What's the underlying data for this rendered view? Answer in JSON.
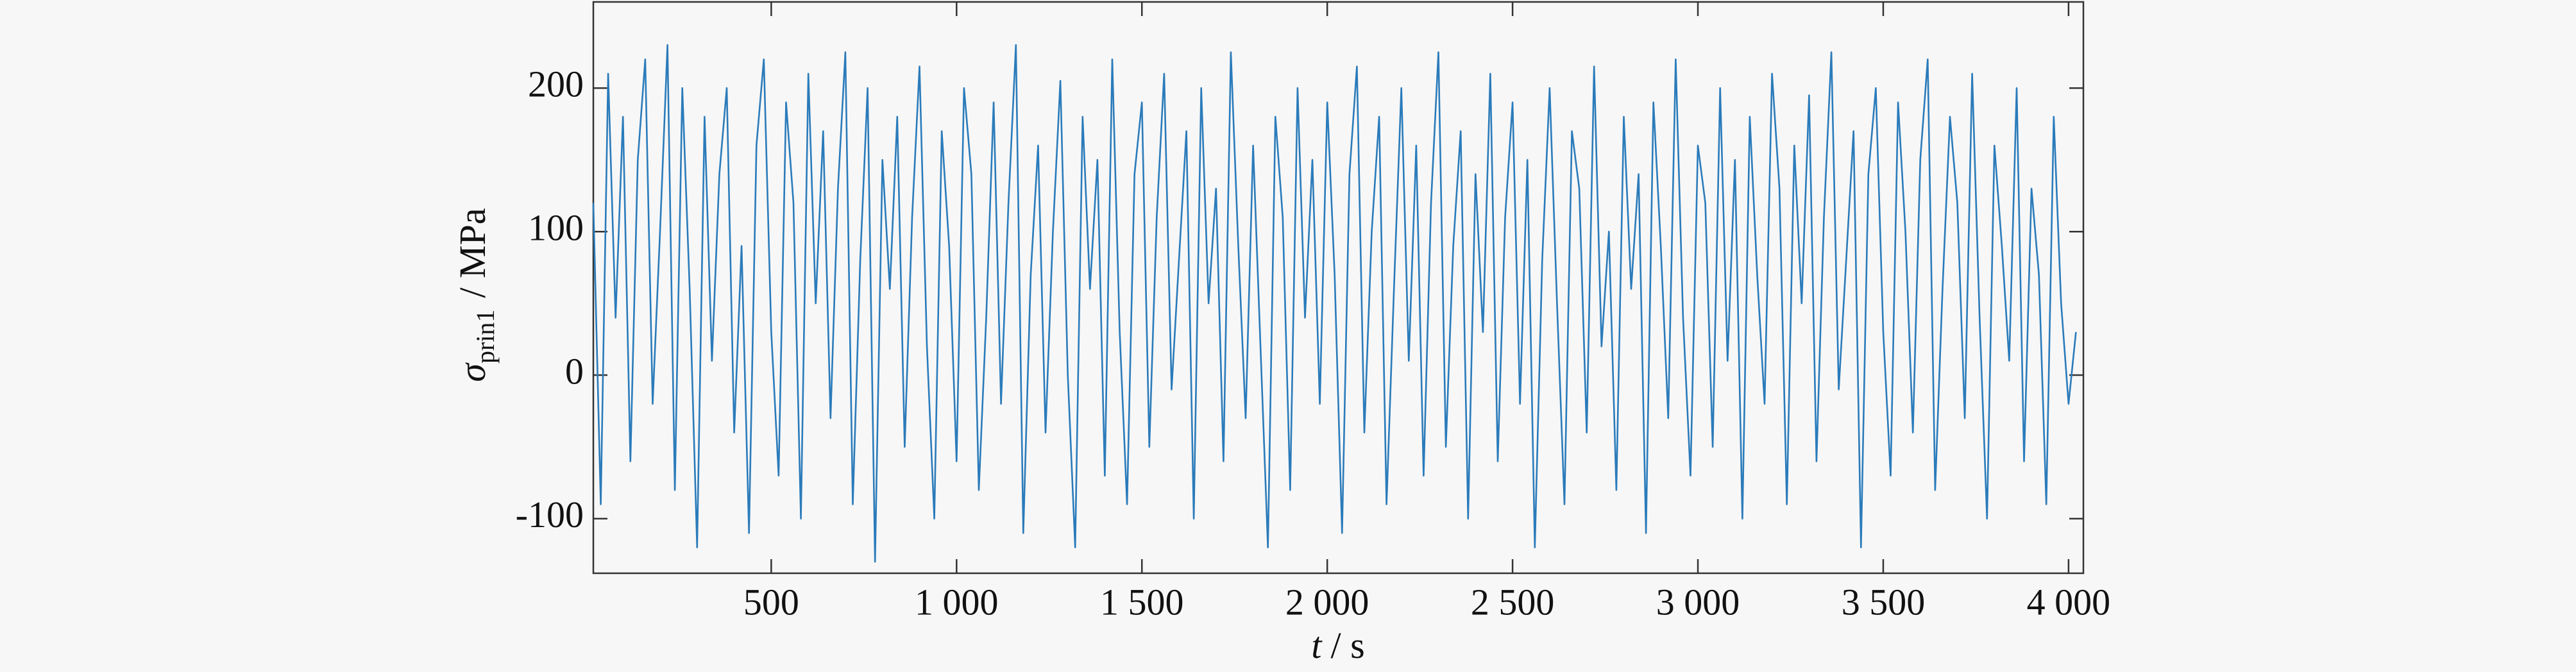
{
  "chart_data": {
    "type": "line",
    "ylabel": {
      "symbol": "σ",
      "subscript": "prin1",
      "unit": "/ MPa"
    },
    "xlabel": {
      "symbol": "t",
      "unit": "/ s"
    },
    "x": [
      20,
      40,
      60,
      80,
      100,
      120,
      140,
      160,
      180,
      200,
      220,
      240,
      260,
      280,
      300,
      320,
      340,
      360,
      380,
      400,
      420,
      440,
      460,
      480,
      500,
      520,
      540,
      560,
      580,
      600,
      620,
      640,
      660,
      680,
      700,
      720,
      740,
      760,
      780,
      800,
      820,
      840,
      860,
      880,
      900,
      920,
      940,
      960,
      980,
      1000,
      1020,
      1040,
      1060,
      1080,
      1100,
      1120,
      1140,
      1160,
      1180,
      1200,
      1220,
      1240,
      1260,
      1280,
      1300,
      1320,
      1340,
      1360,
      1380,
      1400,
      1420,
      1440,
      1460,
      1480,
      1500,
      1520,
      1540,
      1560,
      1580,
      1600,
      1620,
      1640,
      1660,
      1680,
      1700,
      1720,
      1740,
      1760,
      1780,
      1800,
      1820,
      1840,
      1860,
      1880,
      1900,
      1920,
      1940,
      1960,
      1980,
      2000,
      2020,
      2040,
      2060,
      2080,
      2100,
      2120,
      2140,
      2160,
      2180,
      2200,
      2220,
      2240,
      2260,
      2280,
      2300,
      2320,
      2340,
      2360,
      2380,
      2400,
      2420,
      2440,
      2460,
      2480,
      2500,
      2520,
      2540,
      2560,
      2580,
      2600,
      2620,
      2640,
      2660,
      2680,
      2700,
      2720,
      2740,
      2760,
      2780,
      2800,
      2820,
      2840,
      2860,
      2880,
      2900,
      2920,
      2940,
      2960,
      2980,
      3000,
      3020,
      3040,
      3060,
      3080,
      3100,
      3120,
      3140,
      3160,
      3180,
      3200,
      3220,
      3240,
      3260,
      3280,
      3300,
      3320,
      3340,
      3360,
      3380,
      3400,
      3420,
      3440,
      3460,
      3480,
      3500,
      3520,
      3540,
      3560,
      3580,
      3600,
      3620,
      3640,
      3660,
      3680,
      3700,
      3720,
      3740,
      3760,
      3780,
      3800,
      3820,
      3840,
      3860,
      3880,
      3900,
      3920,
      3940,
      3960,
      3980,
      4000,
      4020
    ],
    "series": [
      {
        "color": "#2b7bba",
        "values": [
          120,
          -90,
          210,
          40,
          180,
          -60,
          150,
          220,
          -20,
          100,
          230,
          -80,
          200,
          60,
          -120,
          180,
          10,
          140,
          200,
          -40,
          90,
          -110,
          160,
          220,
          30,
          -70,
          190,
          120,
          -100,
          210,
          50,
          170,
          -30,
          130,
          225,
          -90,
          80,
          200,
          -130,
          150,
          60,
          180,
          -50,
          110,
          215,
          20,
          -100,
          170,
          90,
          -60,
          200,
          140,
          -80,
          40,
          190,
          -20,
          120,
          230,
          -110,
          70,
          160,
          -40,
          100,
          205,
          0,
          -120,
          180,
          60,
          150,
          -70,
          220,
          30,
          -90,
          140,
          190,
          -50,
          110,
          210,
          -10,
          80,
          170,
          -100,
          200,
          50,
          130,
          -60,
          225,
          90,
          -30,
          160,
          20,
          -120,
          180,
          110,
          -80,
          200,
          40,
          150,
          -20,
          190,
          70,
          -110,
          140,
          215,
          -40,
          100,
          180,
          -90,
          60,
          200,
          10,
          160,
          -70,
          120,
          225,
          -50,
          90,
          170,
          -100,
          140,
          30,
          210,
          -60,
          110,
          190,
          -20,
          150,
          -120,
          80,
          200,
          50,
          -90,
          170,
          130,
          -40,
          215,
          20,
          100,
          -80,
          180,
          60,
          140,
          -110,
          190,
          90,
          -30,
          220,
          40,
          -70,
          160,
          120,
          -50,
          200,
          10,
          150,
          -100,
          180,
          70,
          -20,
          210,
          130,
          -90,
          160,
          50,
          195,
          -60,
          110,
          225,
          -10,
          80,
          170,
          -120,
          140,
          200,
          30,
          -70,
          190,
          100,
          -40,
          150,
          220,
          -80,
          60,
          180,
          120,
          -30,
          210,
          40,
          -100,
          160,
          90,
          10,
          200,
          -60,
          130,
          70,
          -90,
          180,
          50,
          -20,
          30
        ]
      }
    ],
    "xlim": [
      20,
      4040
    ],
    "xticks": [
      {
        "value": 500,
        "label": "500"
      },
      {
        "value": 1000,
        "label": "1 000"
      },
      {
        "value": 1500,
        "label": "1 500"
      },
      {
        "value": 2000,
        "label": "2 000"
      },
      {
        "value": 2500,
        "label": "2 500"
      },
      {
        "value": 3000,
        "label": "3 000"
      },
      {
        "value": 3500,
        "label": "3 500"
      },
      {
        "value": 4000,
        "label": "4 000"
      }
    ],
    "ylim": [
      -138,
      260
    ],
    "yticks": [
      -100,
      0,
      100,
      200
    ]
  }
}
